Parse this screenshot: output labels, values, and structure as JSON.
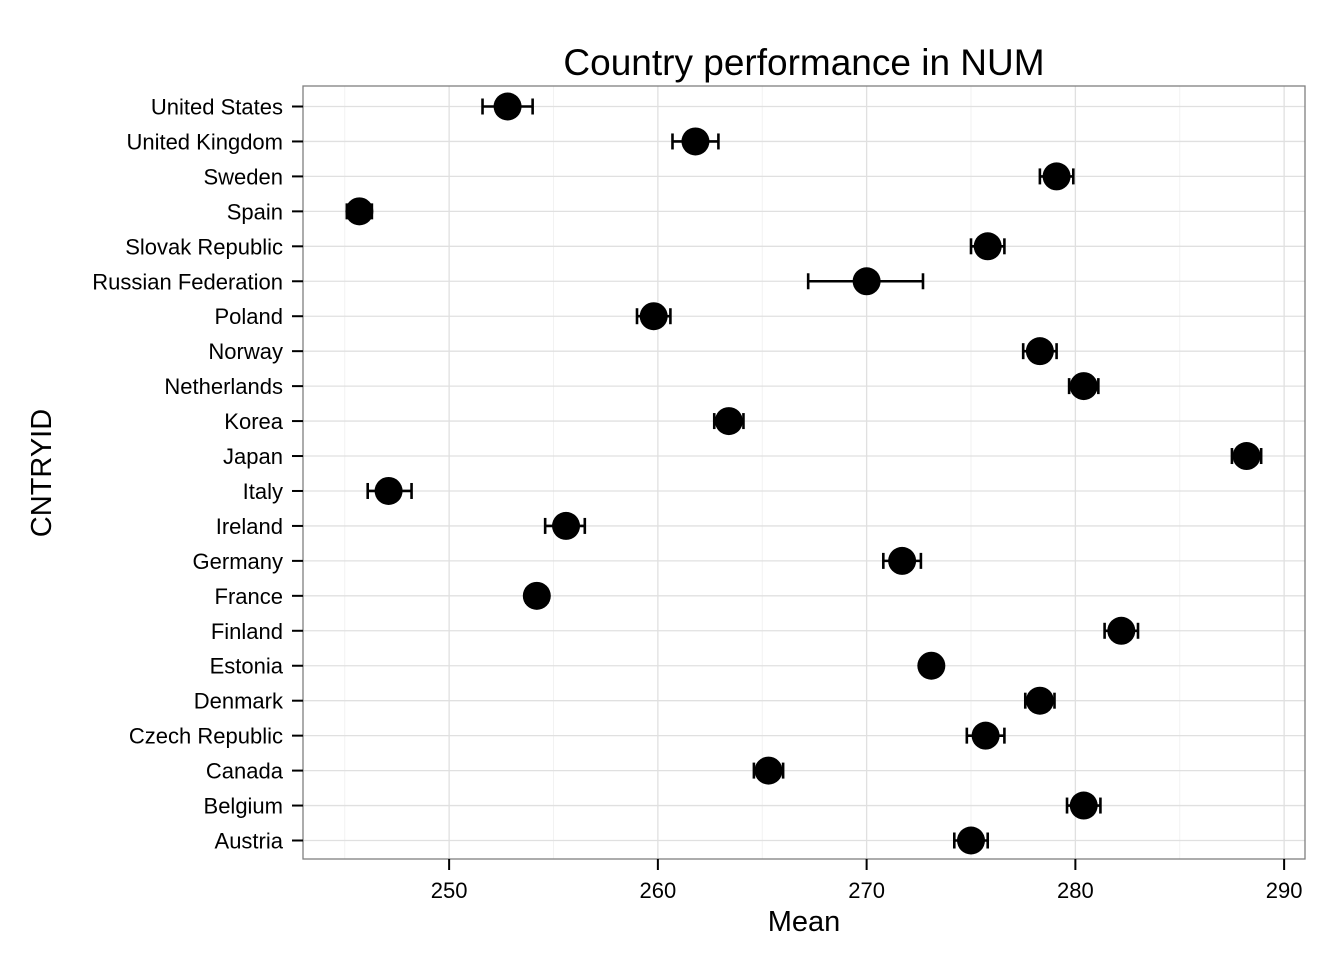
{
  "chart_data": {
    "type": "scatter",
    "title": "Country performance in NUM",
    "xlabel": "Mean",
    "ylabel": "CNTRYID",
    "xlim": [
      243.0,
      291.0
    ],
    "xticks": [
      250,
      260,
      270,
      280,
      290
    ],
    "x_tick_labels": [
      "250",
      "260",
      "270",
      "280",
      "290"
    ],
    "grid": true,
    "error_bars": "horizontal",
    "categories": [
      "United States",
      "United Kingdom",
      "Sweden",
      "Spain",
      "Slovak Republic",
      "Russian Federation",
      "Poland",
      "Norway",
      "Netherlands",
      "Korea",
      "Japan",
      "Italy",
      "Ireland",
      "Germany",
      "France",
      "Finland",
      "Estonia",
      "Denmark",
      "Czech Republic",
      "Canada",
      "Belgium",
      "Austria"
    ],
    "series": [
      {
        "values": [
          252.8,
          261.8,
          279.1,
          245.7,
          275.8,
          270.0,
          259.8,
          278.3,
          280.4,
          263.4,
          288.2,
          247.1,
          255.6,
          271.7,
          254.2,
          282.2,
          273.1,
          278.3,
          275.7,
          265.3,
          280.4,
          275.0
        ],
        "err_low": [
          251.6,
          260.7,
          278.3,
          245.1,
          275.0,
          267.2,
          259.0,
          277.5,
          279.7,
          262.7,
          287.5,
          246.1,
          254.6,
          270.8,
          253.7,
          281.4,
          272.7,
          277.6,
          274.8,
          264.6,
          279.6,
          274.2
        ],
        "err_high": [
          254.0,
          262.9,
          279.9,
          246.3,
          276.6,
          272.7,
          260.6,
          279.1,
          281.1,
          264.1,
          288.9,
          248.2,
          256.5,
          272.6,
          254.7,
          283.0,
          273.5,
          279.0,
          276.6,
          266.0,
          281.2,
          275.8
        ]
      }
    ]
  }
}
